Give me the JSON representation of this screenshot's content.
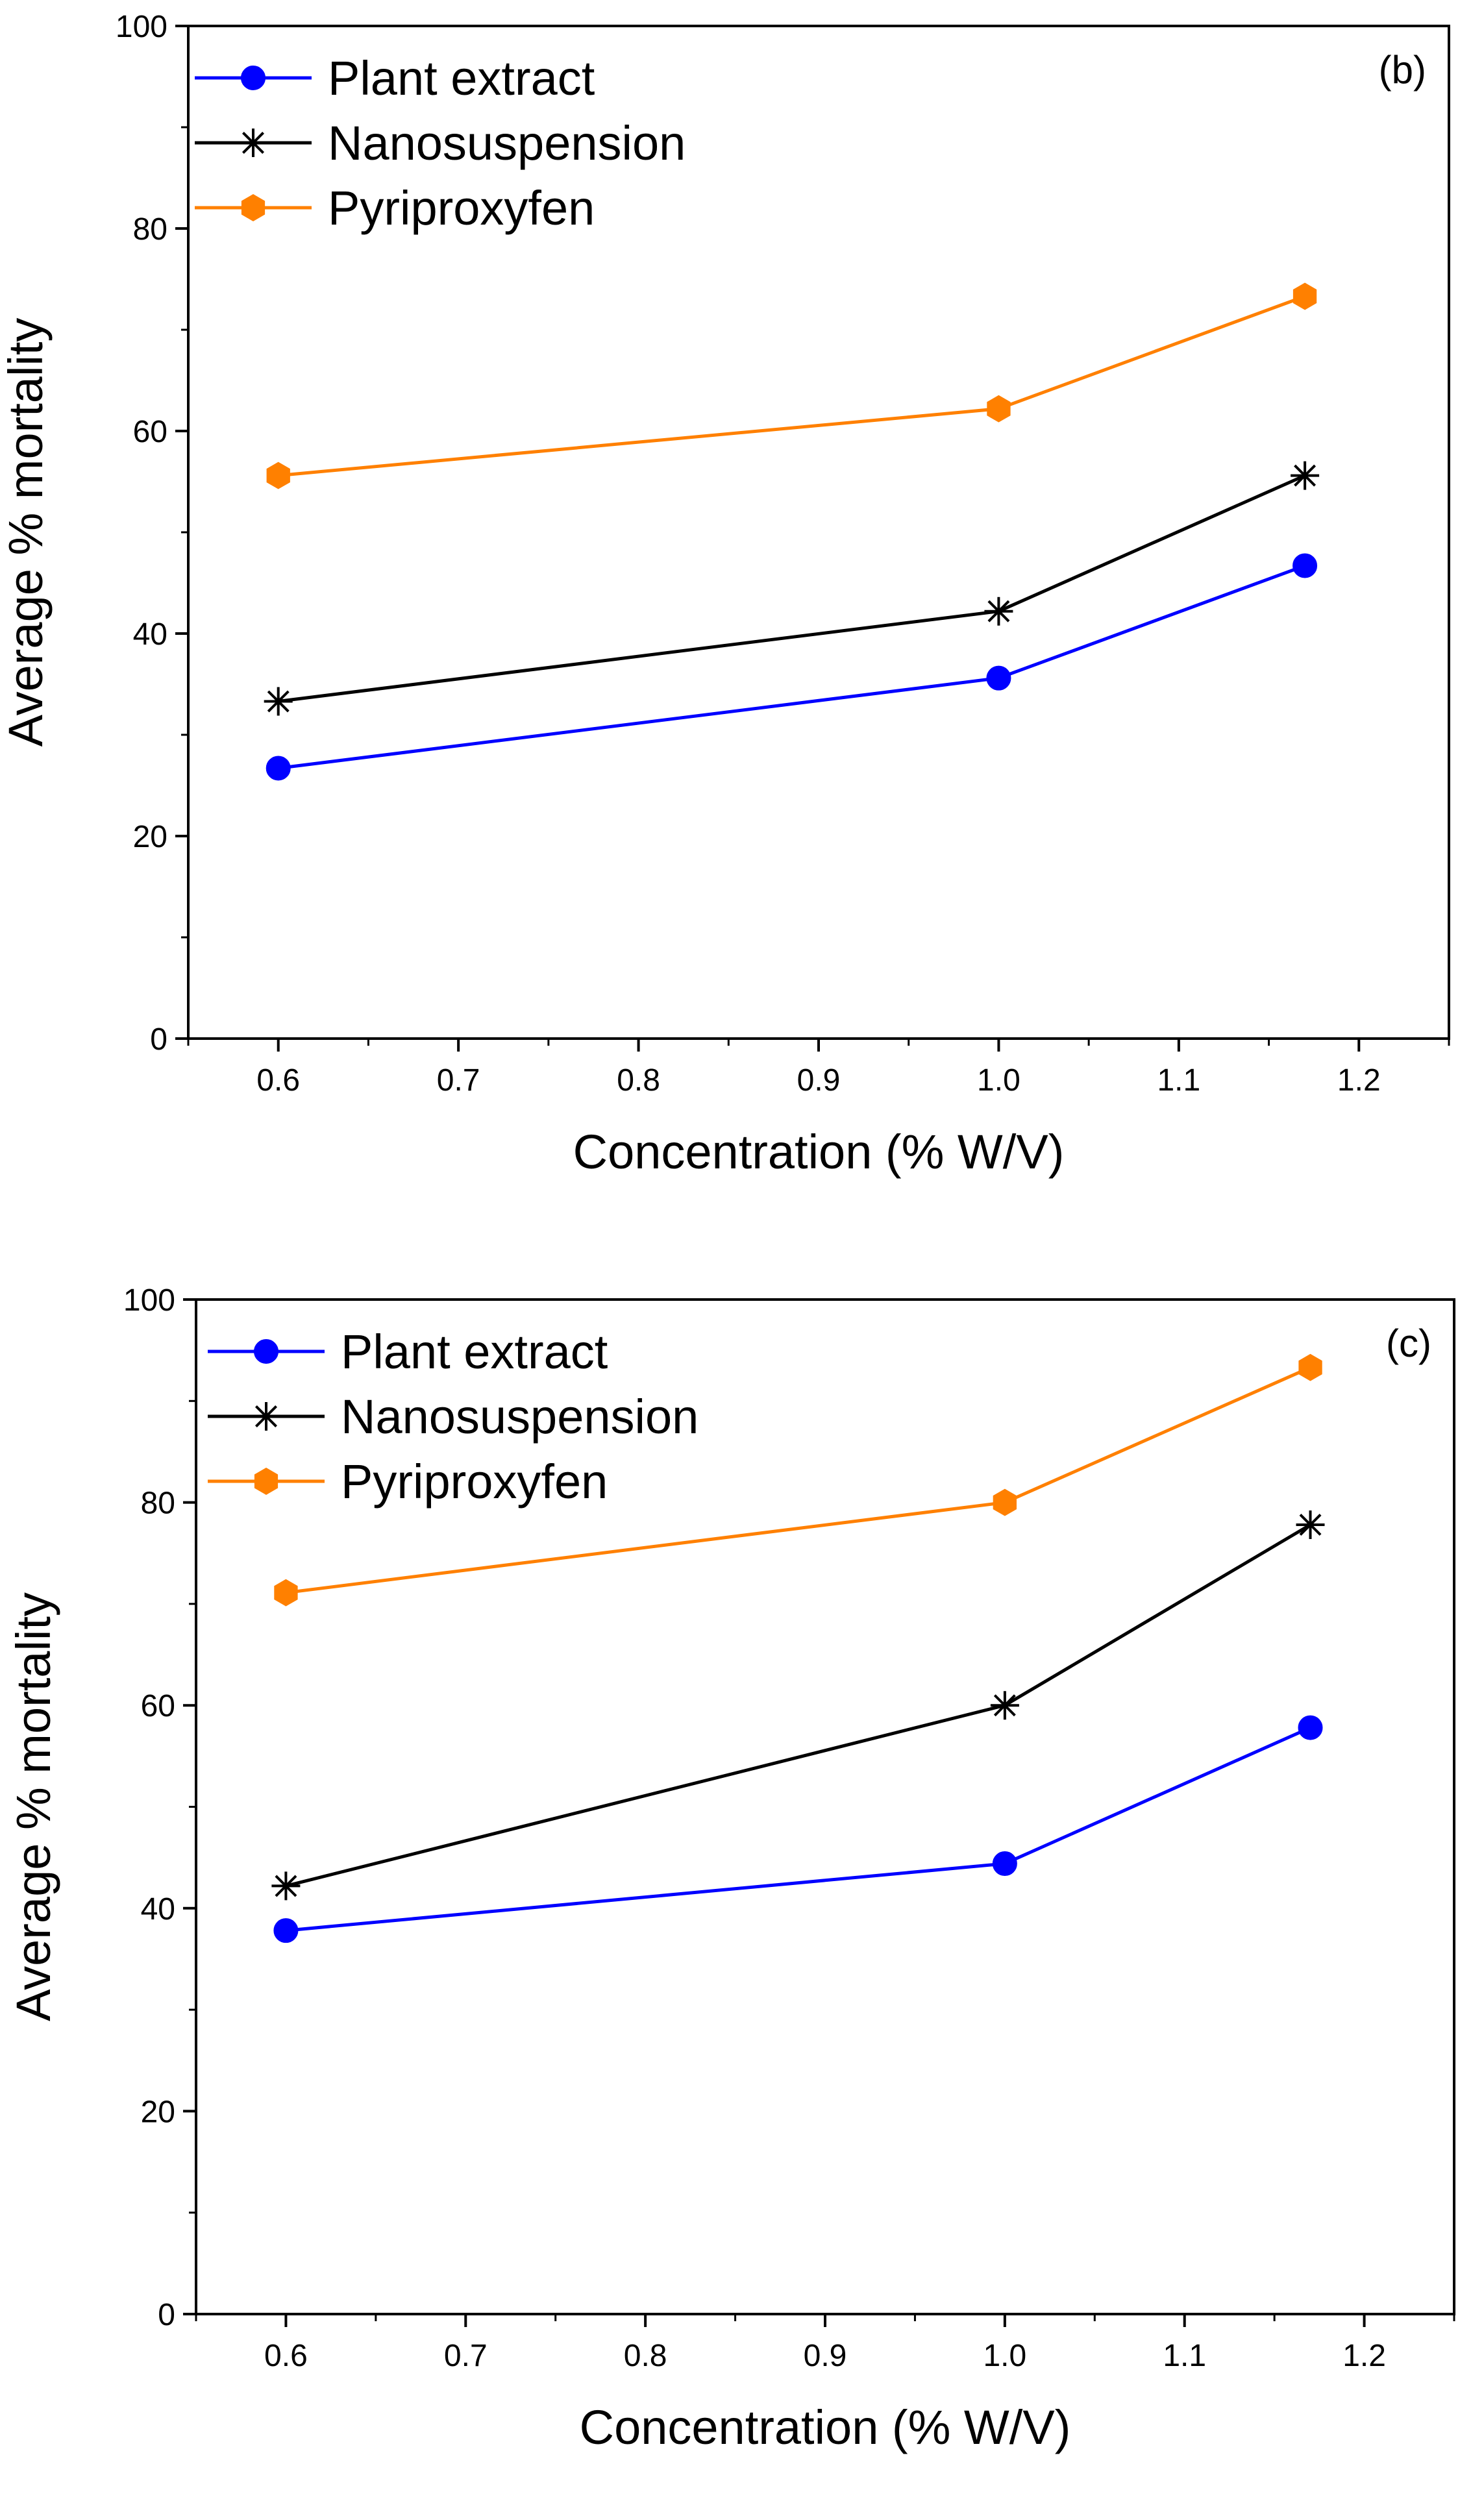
{
  "chart_data": [
    {
      "type": "line",
      "panel_label": "(b)",
      "xlabel": "Concentration (% W/V)",
      "ylabel": "Average % mortality",
      "xlim": [
        0.55,
        1.25
      ],
      "ylim": [
        0,
        100
      ],
      "x_ticks": [
        0.6,
        0.7,
        0.8,
        0.9,
        1.0,
        1.1,
        1.2
      ],
      "x_tick_labels": [
        "0.6",
        "0.7",
        "0.8",
        "0.9",
        "1.0",
        "1.1",
        "1.2"
      ],
      "y_ticks": [
        0,
        20,
        40,
        60,
        80,
        100
      ],
      "y_tick_labels": [
        "0",
        "20",
        "40",
        "60",
        "80",
        "100"
      ],
      "legend_position": "top-left",
      "series": [
        {
          "name": "Plant extract",
          "color": "#0000ff",
          "marker": "circle",
          "x": [
            0.6,
            1.0,
            1.17
          ],
          "values": [
            26.7,
            35.6,
            46.7
          ]
        },
        {
          "name": "Nanosuspension",
          "color": "#000000",
          "marker": "asterisk",
          "x": [
            0.6,
            1.0,
            1.17
          ],
          "values": [
            33.3,
            42.2,
            55.6
          ]
        },
        {
          "name": "Pyriproxyfen",
          "color": "#ff8000",
          "marker": "hexagon",
          "x": [
            0.6,
            1.0,
            1.17
          ],
          "values": [
            55.6,
            62.2,
            73.3
          ]
        }
      ]
    },
    {
      "type": "line",
      "panel_label": "(c)",
      "xlabel": "Concentration (% W/V)",
      "ylabel": "Average % mortality",
      "xlim": [
        0.55,
        1.25
      ],
      "ylim": [
        0,
        100
      ],
      "x_ticks": [
        0.6,
        0.7,
        0.8,
        0.9,
        1.0,
        1.1,
        1.2
      ],
      "x_tick_labels": [
        "0.6",
        "0.7",
        "0.8",
        "0.9",
        "1.0",
        "1.1",
        "1.2"
      ],
      "y_ticks": [
        0,
        20,
        40,
        60,
        80,
        100
      ],
      "y_tick_labels": [
        "0",
        "20",
        "40",
        "60",
        "80",
        "100"
      ],
      "legend_position": "top-left",
      "series": [
        {
          "name": "Plant extract",
          "color": "#0000ff",
          "marker": "circle",
          "x": [
            0.6,
            1.0,
            1.17
          ],
          "values": [
            37.8,
            44.4,
            57.8
          ]
        },
        {
          "name": "Nanosuspension",
          "color": "#000000",
          "marker": "asterisk",
          "x": [
            0.6,
            1.0,
            1.17
          ],
          "values": [
            42.2,
            60.0,
            77.8
          ]
        },
        {
          "name": "Pyriproxyfen",
          "color": "#ff8000",
          "marker": "hexagon",
          "x": [
            0.6,
            1.0,
            1.17
          ],
          "values": [
            71.1,
            80.0,
            93.3
          ]
        }
      ]
    }
  ]
}
